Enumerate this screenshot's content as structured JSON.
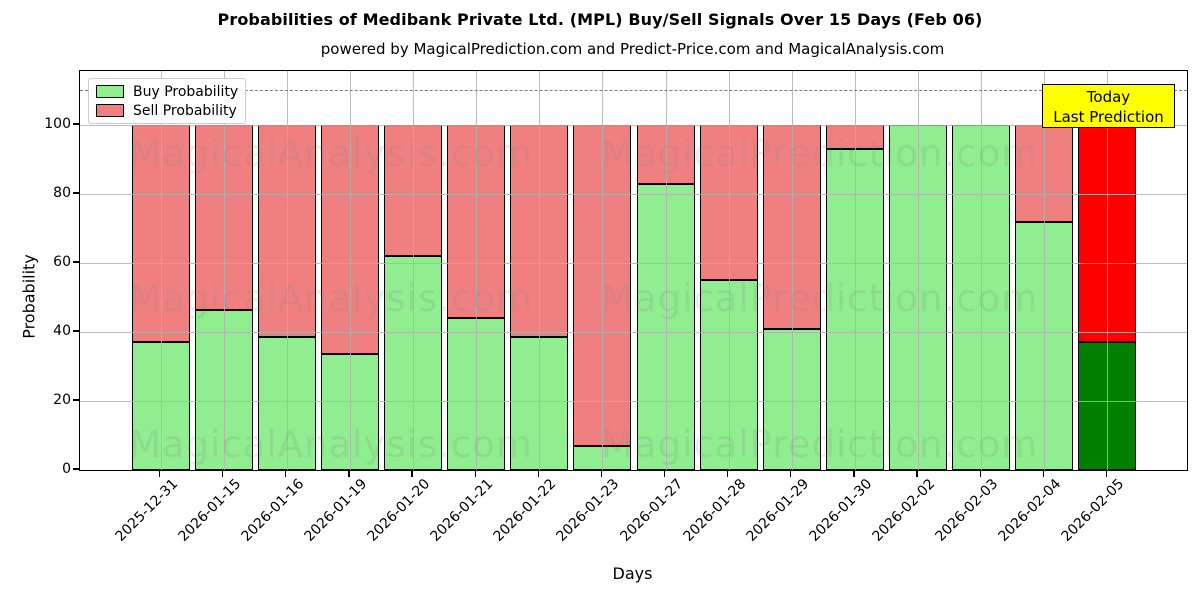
{
  "header": {
    "title": "Probabilities of Medibank Private Ltd. (MPL) Buy/Sell Signals Over 15 Days (Feb 06)",
    "subtitle": "powered by MagicalPrediction.com and Predict-Price.com and MagicalAnalysis.com"
  },
  "legend": {
    "items": [
      {
        "label": "Buy Probability",
        "color": "#90EE90"
      },
      {
        "label": "Sell Probability",
        "color": "#F08080"
      }
    ]
  },
  "annotation_box": {
    "line1": "Today",
    "line2": "Last Prediction",
    "bg_color": "#FFFF00"
  },
  "axes": {
    "x_label": "Days",
    "y_label": "Probability",
    "y_ticks": [
      0,
      20,
      40,
      60,
      80,
      100
    ]
  },
  "watermarks": {
    "left_text": "MagicalAnalysis.com",
    "right_text": "MagicalPrediction.com",
    "rows": 3
  },
  "chart_data": {
    "type": "bar",
    "stacked": true,
    "title": "Probabilities of Medibank Private Ltd. (MPL) Buy/Sell Signals Over 15 Days (Feb 06)",
    "xlabel": "Days",
    "ylabel": "Probability",
    "ylim": [
      0,
      116
    ],
    "grid": true,
    "legend_position": "upper left",
    "threshold_dashed_line_y": 110,
    "categories": [
      "2025-12-31",
      "2026-01-15",
      "2026-01-16",
      "2026-01-19",
      "2026-01-20",
      "2026-01-21",
      "2026-01-22",
      "2026-01-23",
      "2026-01-27",
      "2026-01-28",
      "2026-01-29",
      "2026-01-30",
      "2026-02-02",
      "2026-02-03",
      "2026-02-04",
      "2026-02-05"
    ],
    "series": [
      {
        "name": "Buy Probability",
        "color": "#90EE90",
        "values": [
          37,
          46.5,
          38.5,
          33.5,
          62,
          44,
          38.5,
          7,
          83,
          55,
          41,
          93,
          100,
          100,
          72,
          37
        ]
      },
      {
        "name": "Sell Probability",
        "color": "#F08080",
        "values": [
          63,
          53.5,
          61.5,
          66.5,
          38,
          56,
          61.5,
          93,
          17,
          45,
          59,
          7,
          0,
          0,
          28,
          63
        ]
      }
    ],
    "today_index": 15,
    "today_colors": {
      "buy": "#008000",
      "sell": "#FF0000"
    }
  }
}
